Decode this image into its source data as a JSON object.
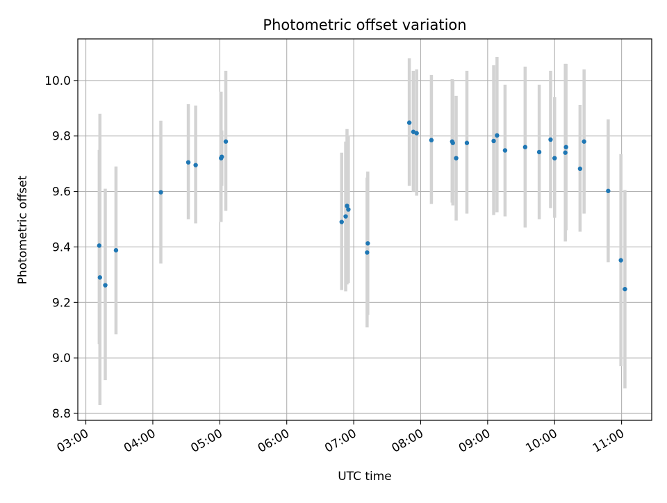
{
  "chart_data": {
    "type": "scatter",
    "title": "Photometric offset variation",
    "xlabel": "UTC time",
    "ylabel": "Photometric offset",
    "x_unit": "time of day (hours, UTC)",
    "xlim": [
      2.88,
      11.45
    ],
    "ylim": [
      8.775,
      10.15
    ],
    "x_ticks": [
      {
        "value": 3,
        "label": "03:00"
      },
      {
        "value": 4,
        "label": "04:00"
      },
      {
        "value": 5,
        "label": "05:00"
      },
      {
        "value": 6,
        "label": "06:00"
      },
      {
        "value": 7,
        "label": "07:00"
      },
      {
        "value": 8,
        "label": "08:00"
      },
      {
        "value": 9,
        "label": "09:00"
      },
      {
        "value": 10,
        "label": "10:00"
      },
      {
        "value": 11,
        "label": "11:00"
      }
    ],
    "y_ticks": [
      {
        "value": 8.8,
        "label": "8.8"
      },
      {
        "value": 9.0,
        "label": "9.0"
      },
      {
        "value": 9.2,
        "label": "9.2"
      },
      {
        "value": 9.4,
        "label": "9.4"
      },
      {
        "value": 9.6,
        "label": "9.6"
      },
      {
        "value": 9.8,
        "label": "9.8"
      },
      {
        "value": 10.0,
        "label": "10.0"
      }
    ],
    "grid": true,
    "point_color": "#1f77b4",
    "errorbar_color": "#d3d3d3",
    "points": [
      {
        "x": 3.2,
        "y": 9.405,
        "ymin": 9.05,
        "ymax": 9.75
      },
      {
        "x": 3.21,
        "y": 9.29,
        "ymin": 8.83,
        "ymax": 9.88
      },
      {
        "x": 3.29,
        "y": 9.262,
        "ymin": 8.92,
        "ymax": 9.61
      },
      {
        "x": 3.45,
        "y": 9.388,
        "ymin": 9.085,
        "ymax": 9.69
      },
      {
        "x": 4.12,
        "y": 9.597,
        "ymin": 9.34,
        "ymax": 9.855
      },
      {
        "x": 4.53,
        "y": 9.705,
        "ymin": 9.5,
        "ymax": 9.915
      },
      {
        "x": 4.64,
        "y": 9.695,
        "ymin": 9.485,
        "ymax": 9.91
      },
      {
        "x": 5.02,
        "y": 9.72,
        "ymin": 9.49,
        "ymax": 9.96
      },
      {
        "x": 5.03,
        "y": 9.725,
        "ymin": 9.62,
        "ymax": 9.82
      },
      {
        "x": 5.09,
        "y": 9.78,
        "ymin": 9.53,
        "ymax": 10.035
      },
      {
        "x": 6.82,
        "y": 9.49,
        "ymin": 9.245,
        "ymax": 9.74
      },
      {
        "x": 6.88,
        "y": 9.51,
        "ymin": 9.24,
        "ymax": 9.78
      },
      {
        "x": 6.9,
        "y": 9.548,
        "ymin": 9.265,
        "ymax": 9.825
      },
      {
        "x": 6.92,
        "y": 9.535,
        "ymin": 9.27,
        "ymax": 9.8
      },
      {
        "x": 7.2,
        "y": 9.38,
        "ymin": 9.11,
        "ymax": 9.65
      },
      {
        "x": 7.21,
        "y": 9.413,
        "ymin": 9.155,
        "ymax": 9.672
      },
      {
        "x": 7.83,
        "y": 9.848,
        "ymin": 9.62,
        "ymax": 10.08
      },
      {
        "x": 7.89,
        "y": 9.815,
        "ymin": 9.6,
        "ymax": 10.035
      },
      {
        "x": 7.94,
        "y": 9.81,
        "ymin": 9.585,
        "ymax": 10.04
      },
      {
        "x": 8.16,
        "y": 9.785,
        "ymin": 9.555,
        "ymax": 10.02
      },
      {
        "x": 8.47,
        "y": 9.78,
        "ymin": 9.56,
        "ymax": 10.005
      },
      {
        "x": 8.48,
        "y": 9.775,
        "ymin": 9.55,
        "ymax": 10.0
      },
      {
        "x": 8.53,
        "y": 9.72,
        "ymin": 9.495,
        "ymax": 9.945
      },
      {
        "x": 8.69,
        "y": 9.775,
        "ymin": 9.52,
        "ymax": 10.035
      },
      {
        "x": 9.09,
        "y": 9.782,
        "ymin": 9.515,
        "ymax": 10.055
      },
      {
        "x": 9.14,
        "y": 9.802,
        "ymin": 9.525,
        "ymax": 10.085
      },
      {
        "x": 9.26,
        "y": 9.748,
        "ymin": 9.51,
        "ymax": 9.985
      },
      {
        "x": 9.56,
        "y": 9.76,
        "ymin": 9.47,
        "ymax": 10.05
      },
      {
        "x": 9.77,
        "y": 9.742,
        "ymin": 9.5,
        "ymax": 9.985
      },
      {
        "x": 9.94,
        "y": 9.787,
        "ymin": 9.54,
        "ymax": 10.035
      },
      {
        "x": 10.0,
        "y": 9.72,
        "ymin": 9.505,
        "ymax": 9.94
      },
      {
        "x": 10.16,
        "y": 9.74,
        "ymin": 9.42,
        "ymax": 10.06
      },
      {
        "x": 10.17,
        "y": 9.76,
        "ymin": 9.46,
        "ymax": 10.06
      },
      {
        "x": 10.38,
        "y": 9.682,
        "ymin": 9.455,
        "ymax": 9.912
      },
      {
        "x": 10.44,
        "y": 9.78,
        "ymin": 9.52,
        "ymax": 10.04
      },
      {
        "x": 10.8,
        "y": 9.602,
        "ymin": 9.345,
        "ymax": 9.86
      },
      {
        "x": 10.99,
        "y": 9.352,
        "ymin": 8.97,
        "ymax": 9.735
      },
      {
        "x": 11.05,
        "y": 9.248,
        "ymin": 8.89,
        "ymax": 9.605
      }
    ]
  }
}
